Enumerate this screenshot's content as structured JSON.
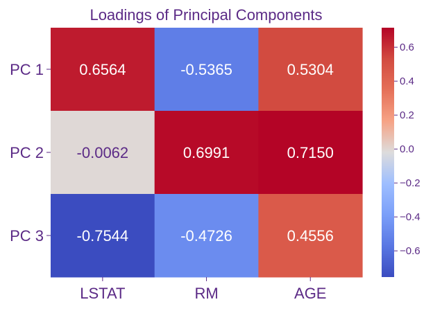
{
  "chart_data": {
    "type": "heatmap",
    "title": "Loadings of Principal Components",
    "rows": [
      "PC 1",
      "PC 2",
      "PC 3"
    ],
    "columns": [
      "LSTAT",
      "RM",
      "AGE"
    ],
    "values": [
      [
        0.6564,
        -0.5365,
        0.5304
      ],
      [
        -0.0062,
        0.6991,
        0.715
      ],
      [
        -0.7544,
        -0.4726,
        0.4556
      ]
    ],
    "cell_labels": [
      [
        "0.6564",
        "-0.5365",
        "0.5304"
      ],
      [
        "-0.0062",
        "0.6991",
        "0.7150"
      ],
      [
        "-0.7544",
        "-0.4726",
        "0.4556"
      ]
    ],
    "colormap": "coolwarm",
    "colorbar": {
      "range": [
        -0.7544,
        0.715
      ],
      "ticks": [
        0.6,
        0.4,
        0.2,
        0.0,
        -0.2,
        -0.4,
        -0.6
      ],
      "tick_labels": [
        "0.6",
        "0.4",
        "0.2",
        "0.0",
        "−0.2",
        "−0.4",
        "−0.6"
      ]
    },
    "colors": {
      "title_text": "#5b2a86",
      "label_text": "#5b2a86",
      "light_cell_text": "#ffffff",
      "dark_cell_text": "#5b2a86"
    }
  }
}
